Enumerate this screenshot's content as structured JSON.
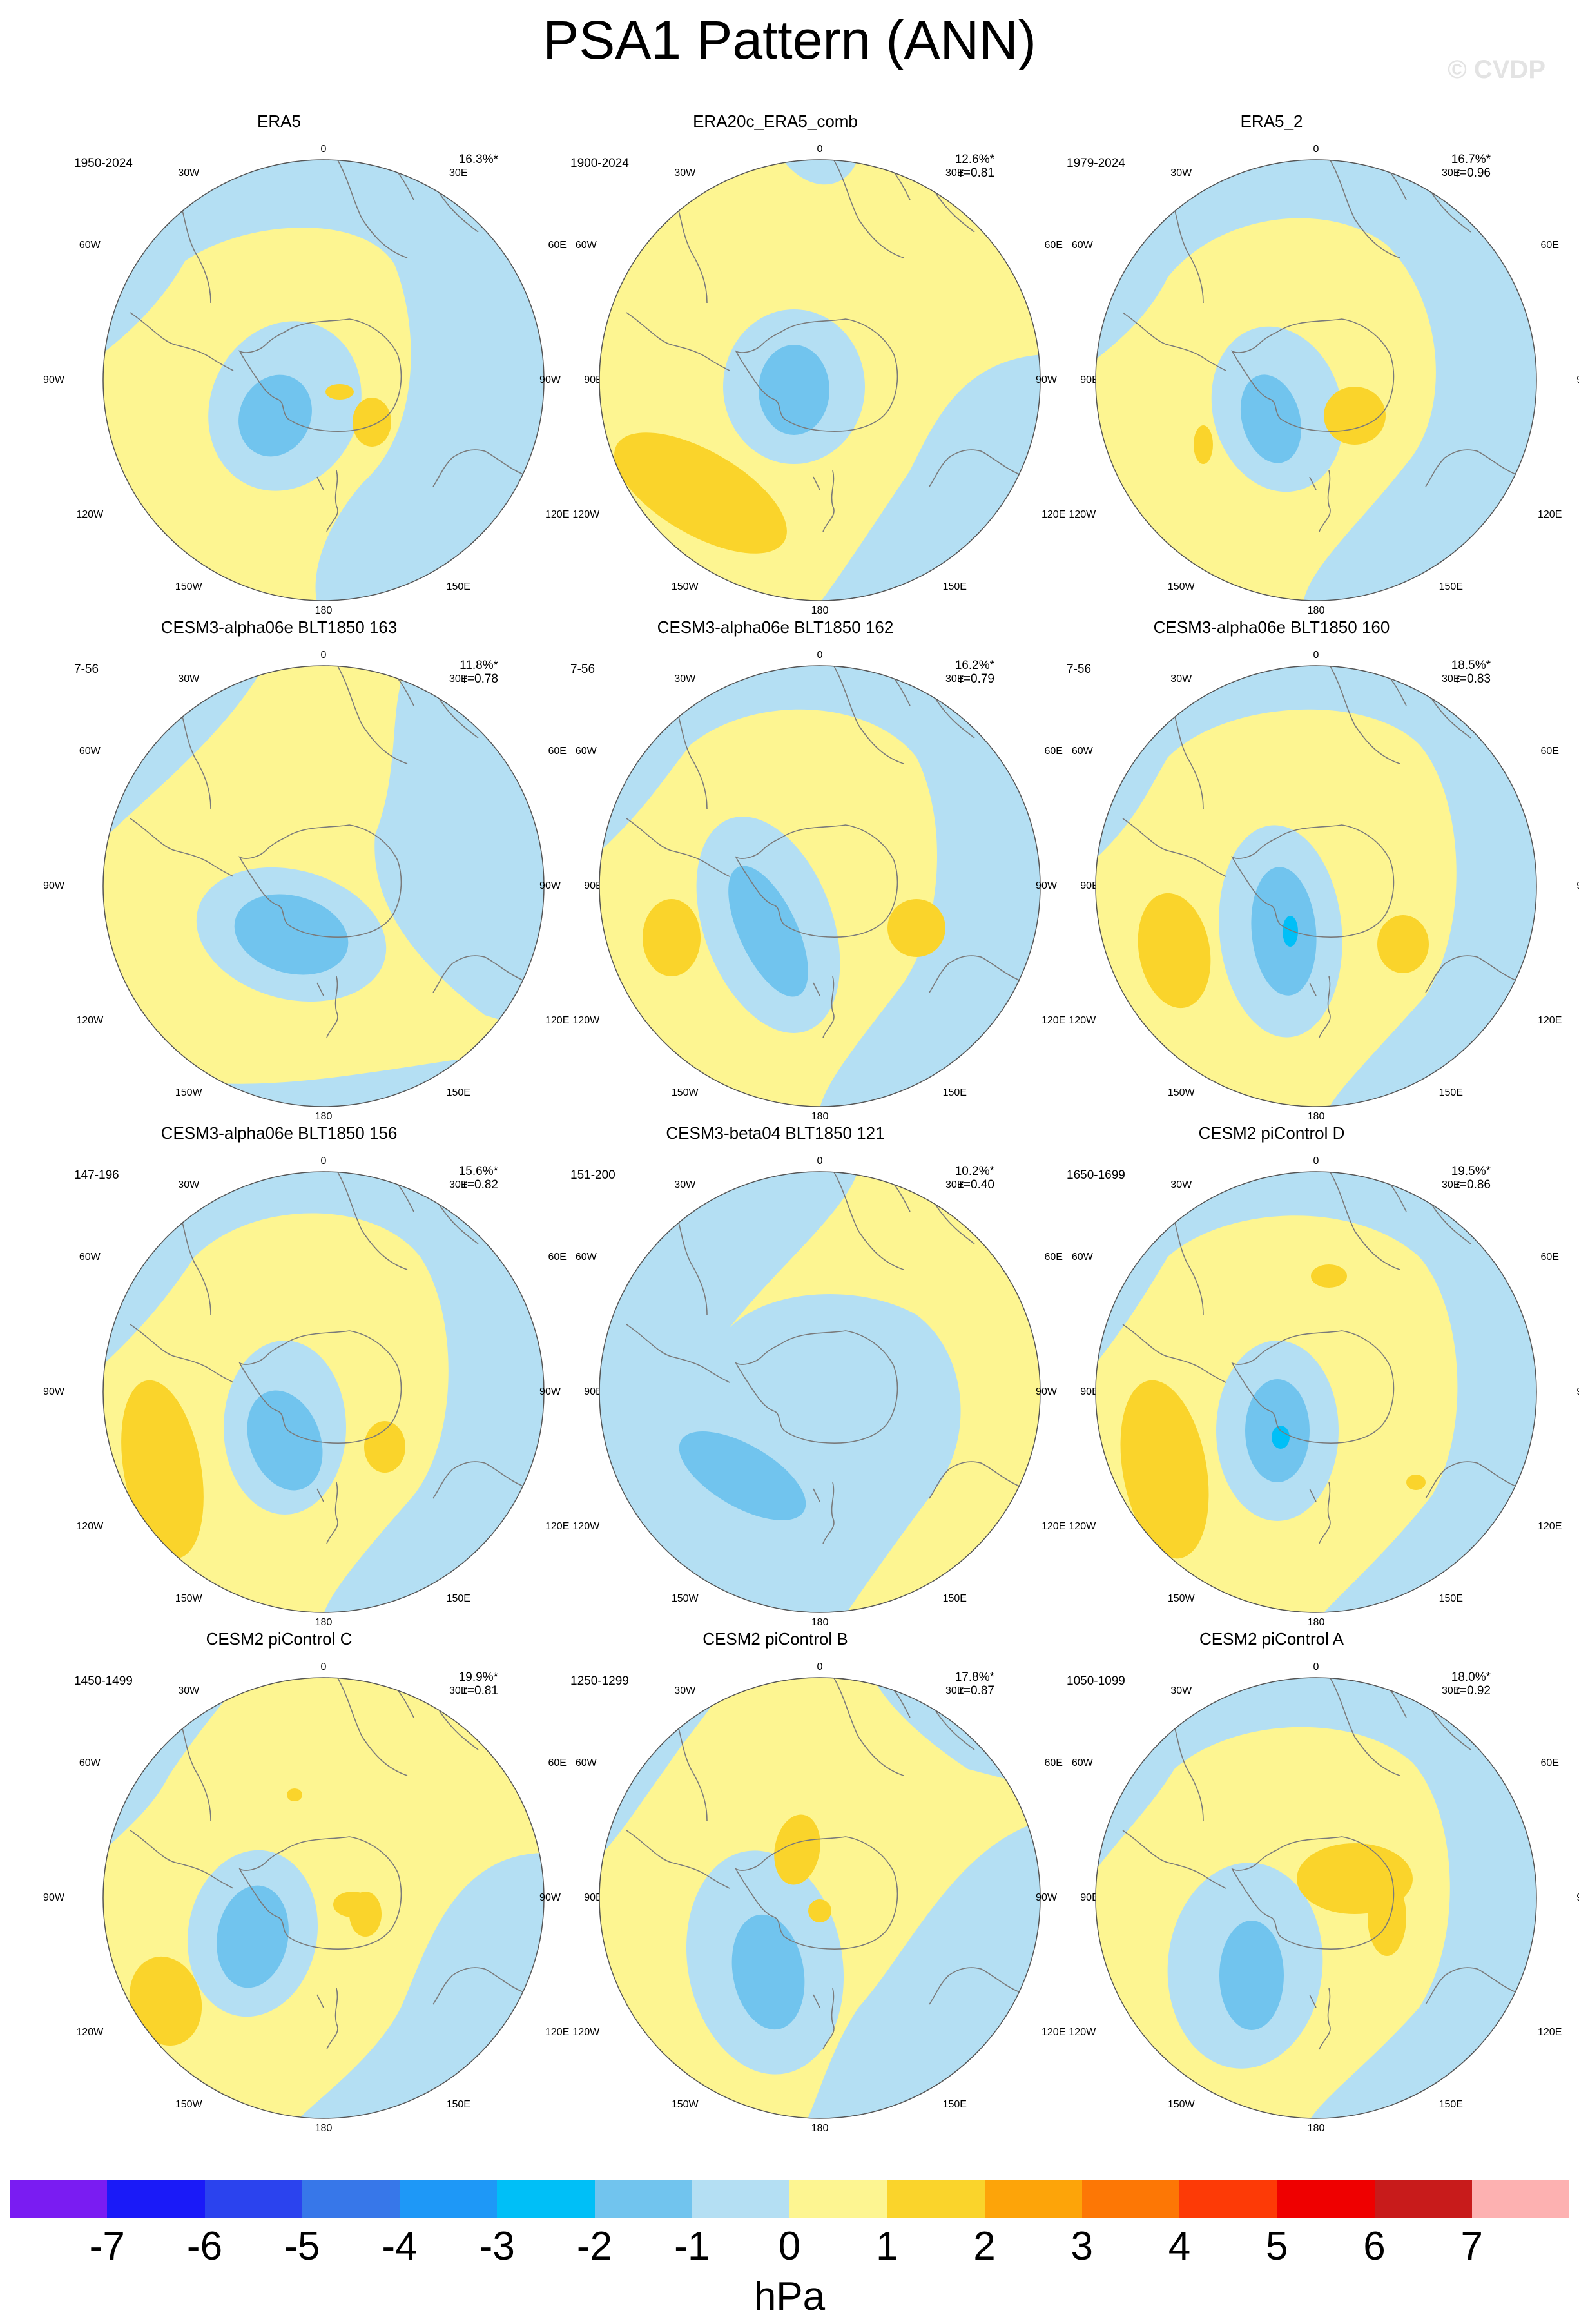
{
  "title": "PSA1 Pattern (ANN)",
  "watermark": "© CVDP",
  "colors": {
    "neg1": "#b4dff3",
    "neg2": "#71c4ee",
    "neg3": "#00bff7",
    "pos1": "#fdf591",
    "pos2": "#fad42b",
    "coast": "#7a7a7a"
  },
  "lon_labels": [
    "0",
    "30E",
    "60E",
    "90E",
    "120E",
    "150E",
    "180",
    "150W",
    "120W",
    "90W",
    "60W",
    "30W"
  ],
  "panels": [
    {
      "name": "ERA5",
      "period": "1950-2024",
      "pct": "16.3%*",
      "r": ""
    },
    {
      "name": "ERA20c_ERA5_comb",
      "period": "1900-2024",
      "pct": "12.6%*",
      "r": "r=0.81"
    },
    {
      "name": "ERA5_2",
      "period": "1979-2024",
      "pct": "16.7%*",
      "r": "r=0.96"
    },
    {
      "name": "CESM3-alpha06e BLT1850 163",
      "period": "7-56",
      "pct": "11.8%*",
      "r": "r=0.78"
    },
    {
      "name": "CESM3-alpha06e BLT1850 162",
      "period": "7-56",
      "pct": "16.2%*",
      "r": "r=0.79"
    },
    {
      "name": "CESM3-alpha06e BLT1850 160",
      "period": "7-56",
      "pct": "18.5%*",
      "r": "r=0.83"
    },
    {
      "name": "CESM3-alpha06e BLT1850 156",
      "period": "147-196",
      "pct": "15.6%*",
      "r": "r=0.82"
    },
    {
      "name": "CESM3-beta04 BLT1850 121",
      "period": "151-200",
      "pct": "10.2%*",
      "r": "r=0.40"
    },
    {
      "name": "CESM2 piControl D",
      "period": "1650-1699",
      "pct": "19.5%*",
      "r": "r=0.86"
    },
    {
      "name": "CESM2 piControl C",
      "period": "1450-1499",
      "pct": "19.9%*",
      "r": "r=0.81"
    },
    {
      "name": "CESM2 piControl B",
      "period": "1250-1299",
      "pct": "17.8%*",
      "r": "r=0.87"
    },
    {
      "name": "CESM2 piControl A",
      "period": "1050-1099",
      "pct": "18.0%*",
      "r": "r=0.92"
    }
  ],
  "colorbar": {
    "colors": [
      "#7a1cf2",
      "#1a1af8",
      "#2b43ee",
      "#3777e9",
      "#1e98f7",
      "#00bff7",
      "#71c4ee",
      "#b4dff3",
      "#fdf591",
      "#fad42b",
      "#fda409",
      "#fd7705",
      "#fd3a06",
      "#ef0000",
      "#c81b1b",
      "#fdb1b1"
    ],
    "ticks": [
      "-7",
      "-6",
      "-5",
      "-4",
      "-3",
      "-2",
      "-1",
      "0",
      "1",
      "2",
      "3",
      "4",
      "5",
      "6",
      "7"
    ],
    "unit": "hPa"
  }
}
